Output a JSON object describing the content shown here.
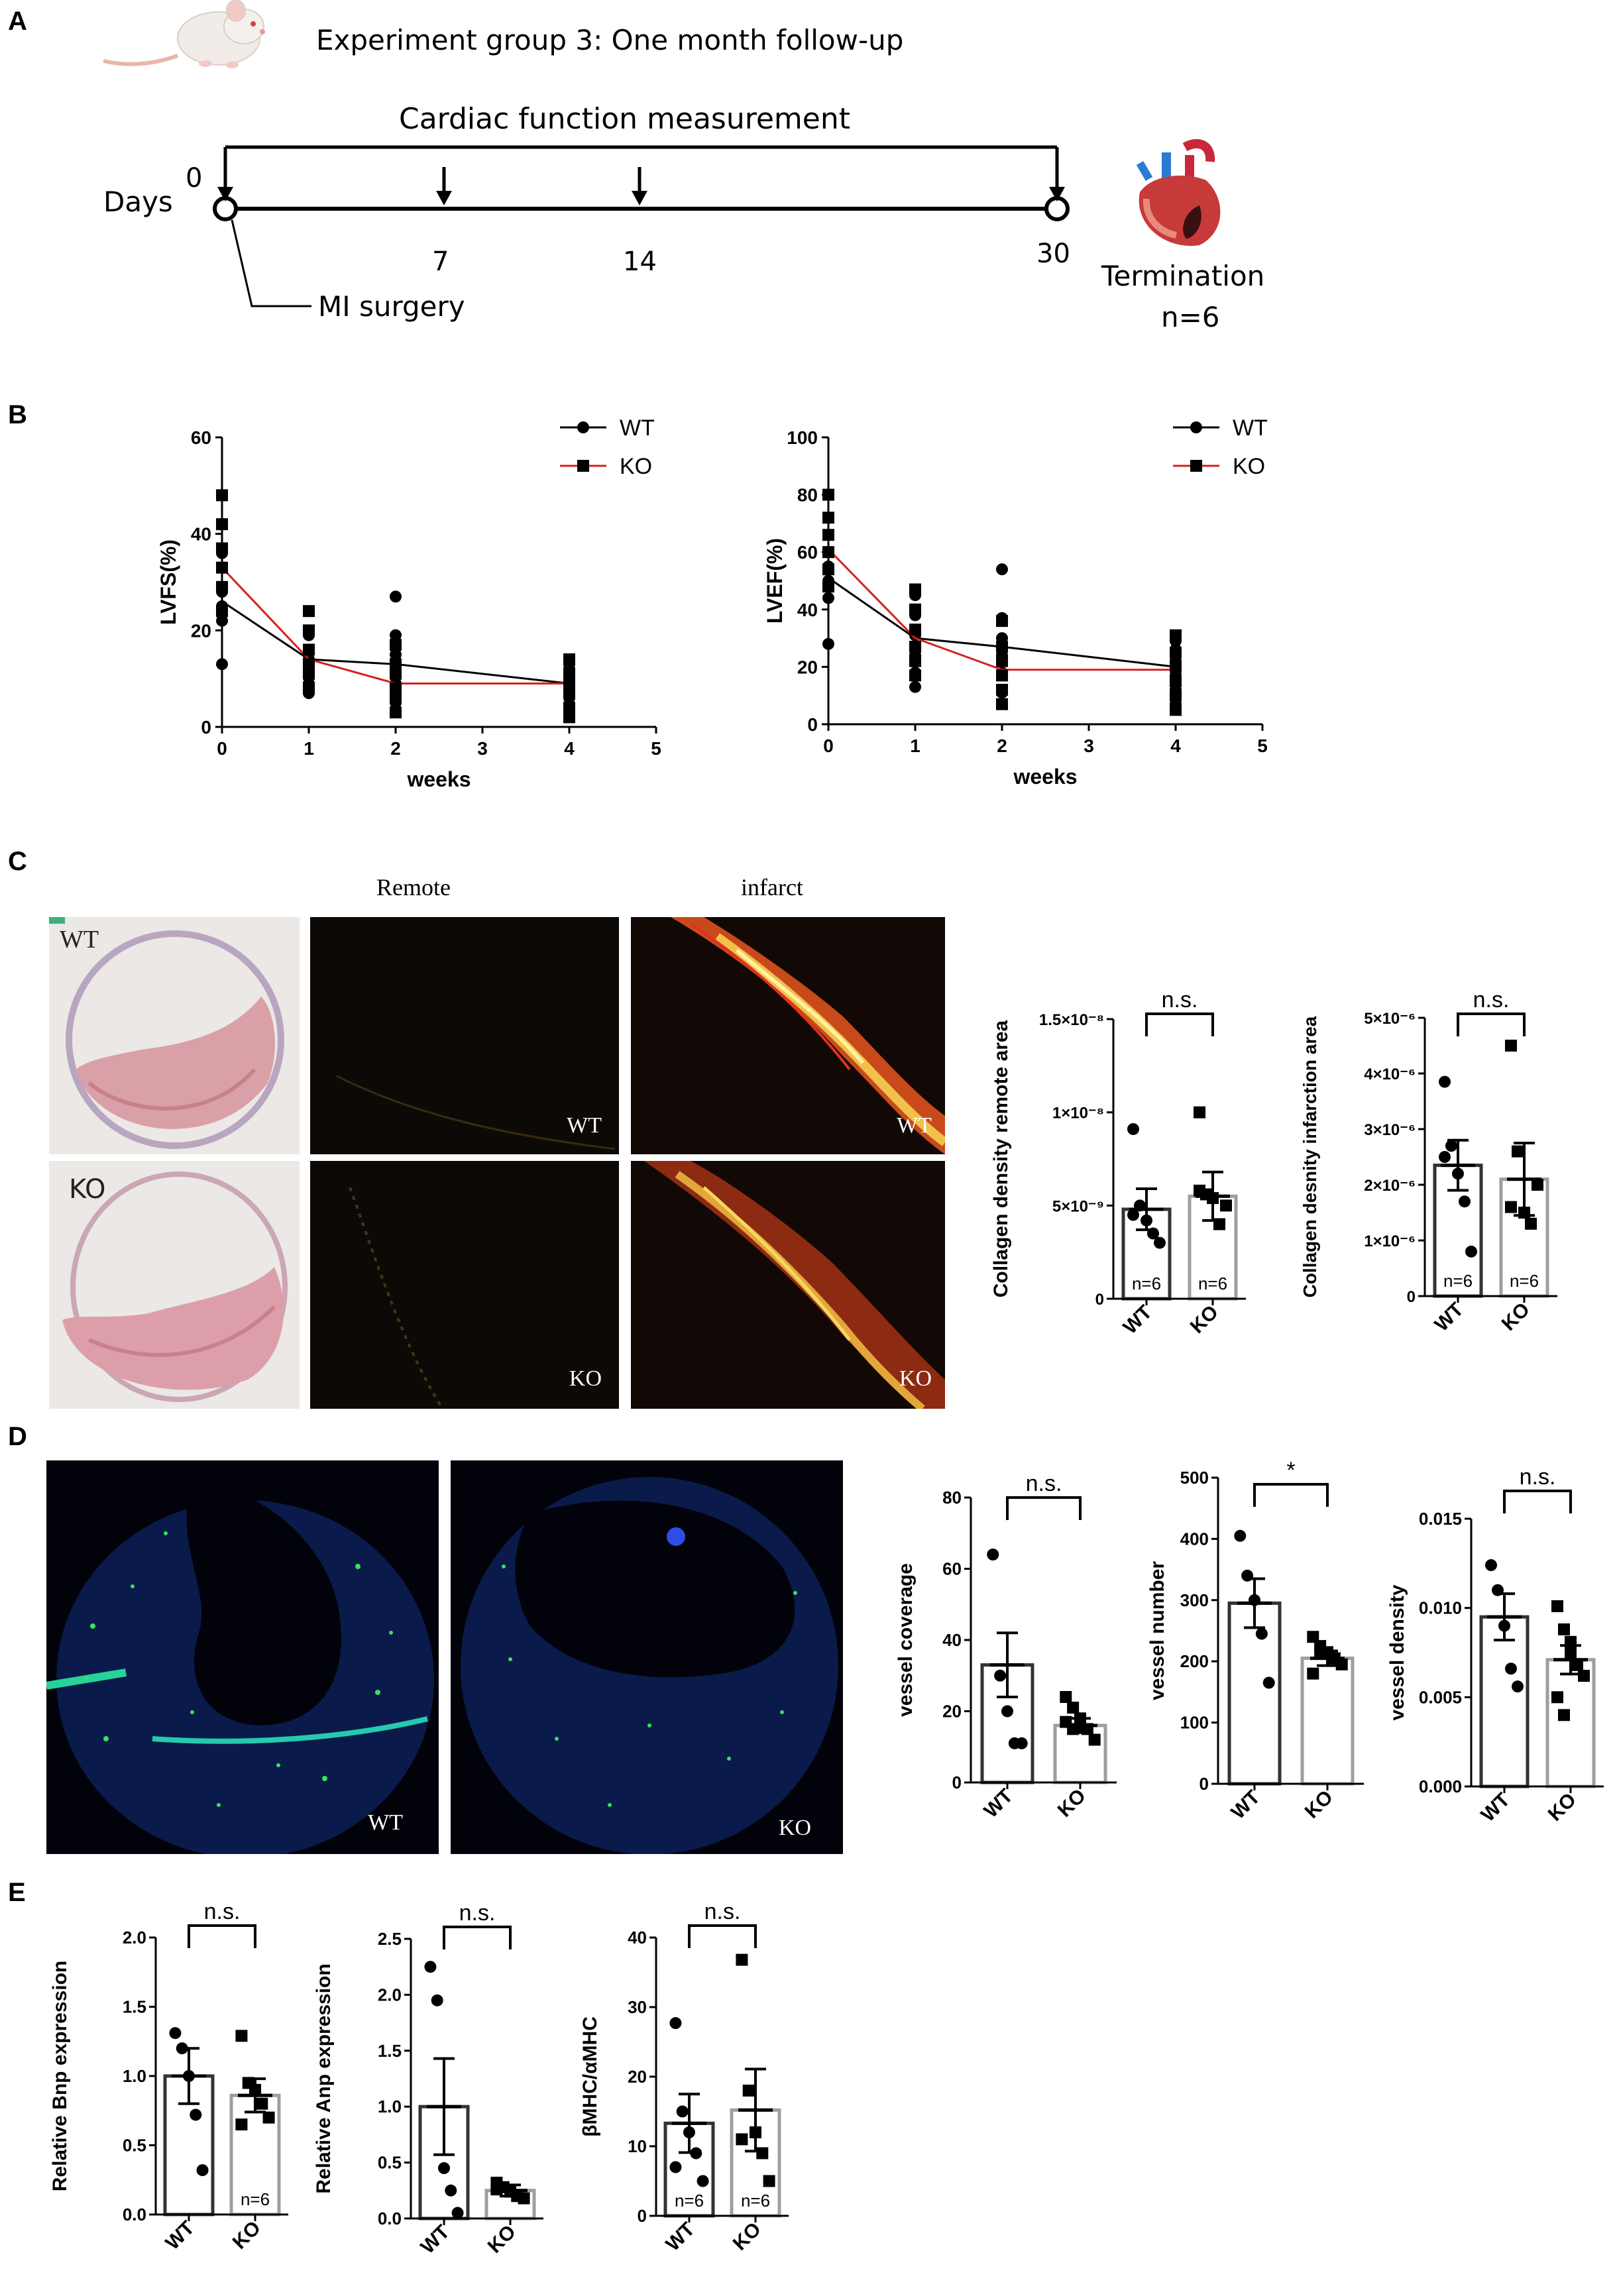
{
  "panels": {
    "A": {
      "letter": "A",
      "title": "Experiment group 3: One month follow-up",
      "measurement_label": "Cardiac function measurement",
      "days_label": "Days",
      "day_ticks": [
        "0",
        "7",
        "14",
        "30"
      ],
      "surgery_label": "MI surgery",
      "termination_label": "Termination",
      "n_label": "n=6",
      "icons": [
        "mouse-icon",
        "heart-icon"
      ]
    },
    "B": {
      "letter": "B",
      "legend": [
        "WT",
        "KO"
      ]
    },
    "C": {
      "letter": "C",
      "column_headers": [
        "Remote",
        "infarct"
      ],
      "row_labels": [
        "WT",
        "KO"
      ],
      "image_tags": {
        "wt": "WT",
        "ko": "KO"
      }
    },
    "D": {
      "letter": "D",
      "image_tags": [
        "WT",
        "KO"
      ]
    },
    "E": {
      "letter": "E"
    }
  },
  "colors": {
    "wt_line": "#000000",
    "ko_line": "#d42020",
    "wt_bar": "#333333",
    "ko_bar": "#9e9e9e"
  },
  "chart_data": [
    {
      "id": "lvfs",
      "type": "scatter",
      "xlabel": "weeks",
      "ylabel": "LVFS(%)",
      "xlim": [
        0,
        5
      ],
      "ylim": [
        0,
        60
      ],
      "xticks": [
        "0",
        "1",
        "2",
        "3",
        "4",
        "5"
      ],
      "yticks": [
        "0",
        "20",
        "40",
        "60"
      ],
      "legend": [
        "WT",
        "KO"
      ],
      "series": [
        {
          "name": "WT",
          "marker": "circle",
          "mean_x": [
            0,
            1,
            2,
            4
          ],
          "mean_y": [
            26,
            14,
            13,
            9
          ],
          "points": [
            [
              0,
              13
            ],
            [
              0,
              22
            ],
            [
              0,
              25
            ],
            [
              0,
              28
            ],
            [
              0,
              33
            ],
            [
              0,
              36
            ],
            [
              1,
              7
            ],
            [
              1,
              9
            ],
            [
              1,
              12
            ],
            [
              1,
              14
            ],
            [
              1,
              16
            ],
            [
              1,
              19
            ],
            [
              2,
              5
            ],
            [
              2,
              9
            ],
            [
              2,
              12
            ],
            [
              2,
              15
            ],
            [
              2,
              19
            ],
            [
              2,
              27
            ],
            [
              4,
              3
            ],
            [
              4,
              6
            ],
            [
              4,
              8
            ],
            [
              4,
              10
            ],
            [
              4,
              12
            ],
            [
              4,
              13
            ]
          ]
        },
        {
          "name": "KO",
          "marker": "square",
          "mean_x": [
            0,
            1,
            2,
            4
          ],
          "mean_y": [
            33,
            14,
            9,
            9
          ],
          "points": [
            [
              0,
              24
            ],
            [
              0,
              29
            ],
            [
              0,
              33
            ],
            [
              0,
              37
            ],
            [
              0,
              42
            ],
            [
              0,
              48
            ],
            [
              1,
              8
            ],
            [
              1,
              11
            ],
            [
              1,
              13
            ],
            [
              1,
              16
            ],
            [
              1,
              20
            ],
            [
              1,
              24
            ],
            [
              2,
              3
            ],
            [
              2,
              6
            ],
            [
              2,
              8
            ],
            [
              2,
              11
            ],
            [
              2,
              13
            ],
            [
              2,
              17
            ],
            [
              4,
              2
            ],
            [
              4,
              4
            ],
            [
              4,
              7
            ],
            [
              4,
              9
            ],
            [
              4,
              11
            ],
            [
              4,
              14
            ]
          ]
        }
      ]
    },
    {
      "id": "lvef",
      "type": "scatter",
      "xlabel": "weeks",
      "ylabel": "LVEF(%)",
      "xlim": [
        0,
        5
      ],
      "ylim": [
        0,
        100
      ],
      "xticks": [
        "0",
        "1",
        "2",
        "3",
        "4",
        "5"
      ],
      "yticks": [
        "0",
        "20",
        "40",
        "60",
        "80",
        "100"
      ],
      "legend": [
        "WT",
        "KO"
      ],
      "series": [
        {
          "name": "WT",
          "marker": "circle",
          "mean_x": [
            0,
            1,
            2,
            4
          ],
          "mean_y": [
            51,
            30,
            27,
            20
          ],
          "points": [
            [
              0,
              28
            ],
            [
              0,
              44
            ],
            [
              0,
              50
            ],
            [
              0,
              55
            ],
            [
              0,
              60
            ],
            [
              0,
              66
            ],
            [
              1,
              13
            ],
            [
              1,
              18
            ],
            [
              1,
              24
            ],
            [
              1,
              31
            ],
            [
              1,
              38
            ],
            [
              1,
              45
            ],
            [
              2,
              11
            ],
            [
              2,
              18
            ],
            [
              2,
              24
            ],
            [
              2,
              30
            ],
            [
              2,
              37
            ],
            [
              2,
              54
            ],
            [
              4,
              7
            ],
            [
              4,
              12
            ],
            [
              4,
              17
            ],
            [
              4,
              22
            ],
            [
              4,
              26
            ],
            [
              4,
              29
            ]
          ]
        },
        {
          "name": "KO",
          "marker": "square",
          "mean_x": [
            0,
            1,
            2,
            4
          ],
          "mean_y": [
            61,
            30,
            19,
            19
          ],
          "points": [
            [
              0,
              48
            ],
            [
              0,
              54
            ],
            [
              0,
              60
            ],
            [
              0,
              66
            ],
            [
              0,
              72
            ],
            [
              0,
              80
            ],
            [
              1,
              17
            ],
            [
              1,
              22
            ],
            [
              1,
              27
            ],
            [
              1,
              33
            ],
            [
              1,
              40
            ],
            [
              1,
              47
            ],
            [
              2,
              7
            ],
            [
              2,
              12
            ],
            [
              2,
              17
            ],
            [
              2,
              22
            ],
            [
              2,
              27
            ],
            [
              2,
              36
            ],
            [
              4,
              5
            ],
            [
              4,
              10
            ],
            [
              4,
              15
            ],
            [
              4,
              20
            ],
            [
              4,
              25
            ],
            [
              4,
              31
            ]
          ]
        }
      ]
    },
    {
      "id": "col_remote",
      "type": "bar",
      "ylabel": "Collagen density remote area",
      "categories": [
        "WT",
        "KO"
      ],
      "ylim": [
        0,
        1.5e-08
      ],
      "yticks": [
        "0",
        "5×10⁻⁹",
        "1×10⁻⁸",
        "1.5×10⁻⁸"
      ],
      "values": [
        4.8e-09,
        5.5e-09
      ],
      "sem": [
        1.1e-09,
        1.3e-09
      ],
      "points": [
        [
          9.1e-09,
          5e-09,
          4.2e-09,
          3.5e-09,
          3e-09,
          4.5e-09
        ],
        [
          1e-08,
          5.6e-09,
          5.4e-09,
          4e-09,
          5e-09,
          5.8e-09
        ]
      ],
      "significance": "n.s.",
      "n_labels": [
        "n=6",
        "n=6"
      ]
    },
    {
      "id": "col_infarct",
      "type": "bar",
      "ylabel": "Collagen desnity infarction area",
      "categories": [
        "WT",
        "KO"
      ],
      "ylim": [
        0,
        5e-06
      ],
      "yticks": [
        "0",
        "1×10⁻⁶",
        "2×10⁻⁶",
        "3×10⁻⁶",
        "4×10⁻⁶",
        "5×10⁻⁶"
      ],
      "values": [
        2.35e-06,
        2.1e-06
      ],
      "sem": [
        4.5e-07,
        6.5e-07
      ],
      "points": [
        [
          3.85e-06,
          2.7e-06,
          2.2e-06,
          1.7e-06,
          8e-07,
          2.5e-06
        ],
        [
          4.5e-06,
          2.6e-06,
          1.5e-06,
          1.3e-06,
          2e-06,
          1.6e-06
        ]
      ],
      "significance": "n.s.",
      "n_labels": [
        "n=6",
        "n=6"
      ]
    },
    {
      "id": "vessel_coverage",
      "type": "bar",
      "ylabel": "vessel coverage",
      "categories": [
        "WT",
        "KO"
      ],
      "ylim": [
        0,
        80
      ],
      "yticks": [
        "0",
        "20",
        "40",
        "60",
        "80"
      ],
      "values": [
        33,
        16
      ],
      "sem": [
        9,
        2
      ],
      "points": [
        [
          64,
          30,
          20,
          11,
          11
        ],
        [
          24,
          21,
          18,
          15,
          12,
          17,
          15
        ]
      ],
      "significance": "n.s."
    },
    {
      "id": "vessel_number",
      "type": "bar",
      "ylabel": "vessel number",
      "categories": [
        "WT",
        "KO"
      ],
      "ylim": [
        0,
        500
      ],
      "yticks": [
        "0",
        "100",
        "200",
        "300",
        "400",
        "500"
      ],
      "values": [
        295,
        205
      ],
      "sem": [
        40,
        12
      ],
      "points": [
        [
          405,
          340,
          300,
          245,
          165
        ],
        [
          240,
          225,
          215,
          205,
          195,
          180,
          215
        ]
      ],
      "significance": "*"
    },
    {
      "id": "vessel_density",
      "type": "bar",
      "ylabel": "vessel density",
      "categories": [
        "WT",
        "KO"
      ],
      "ylim": [
        0,
        0.015
      ],
      "yticks": [
        "0.000",
        "0.005",
        "0.010",
        "0.015"
      ],
      "values": [
        0.0095,
        0.0071
      ],
      "sem": [
        0.0013,
        0.0008
      ],
      "points": [
        [
          0.0124,
          0.011,
          0.009,
          0.0066,
          0.0056
        ],
        [
          0.0101,
          0.0088,
          0.0075,
          0.0068,
          0.0062,
          0.005,
          0.004,
          0.0081
        ]
      ],
      "significance": "n.s."
    },
    {
      "id": "bnp",
      "type": "bar",
      "ylabel": "Relative Bnp expression",
      "categories": [
        "WT",
        "KO"
      ],
      "ylim": [
        0,
        2.0
      ],
      "yticks": [
        "0.0",
        "0.5",
        "1.0",
        "1.5",
        "2.0"
      ],
      "values": [
        1.0,
        0.86
      ],
      "sem": [
        0.2,
        0.12
      ],
      "points": [
        [
          1.31,
          1.2,
          1.0,
          0.72,
          0.32
        ],
        [
          1.29,
          0.95,
          0.9,
          0.8,
          0.7,
          0.65
        ]
      ],
      "significance": "n.s.",
      "n_labels": [
        "",
        "n=6"
      ]
    },
    {
      "id": "anp",
      "type": "bar",
      "ylabel": "Relative Anp expression",
      "categories": [
        "WT",
        "KO"
      ],
      "ylim": [
        0,
        2.5
      ],
      "yticks": [
        "0.0",
        "0.5",
        "1.0",
        "1.5",
        "2.0",
        "2.5"
      ],
      "values": [
        1.0,
        0.25
      ],
      "sem": [
        0.43,
        0.05
      ],
      "points": [
        [
          2.25,
          1.95,
          0.45,
          0.25,
          0.05
        ],
        [
          0.32,
          0.28,
          0.24,
          0.2,
          0.18,
          0.26
        ]
      ],
      "significance": "n.s."
    },
    {
      "id": "bmhc",
      "type": "bar",
      "ylabel": "βMHC/αMHC",
      "categories": [
        "WT",
        "KO"
      ],
      "ylim": [
        0,
        40
      ],
      "yticks": [
        "0",
        "10",
        "20",
        "30",
        "40"
      ],
      "values": [
        13.3,
        15.2
      ],
      "sem": [
        4.2,
        5.9
      ],
      "points": [
        [
          27.7,
          15,
          12,
          9,
          5,
          7
        ],
        [
          36.8,
          18,
          12,
          9,
          5,
          11
        ]
      ],
      "significance": "n.s.",
      "n_labels": [
        "n=6",
        "n=6"
      ]
    }
  ]
}
